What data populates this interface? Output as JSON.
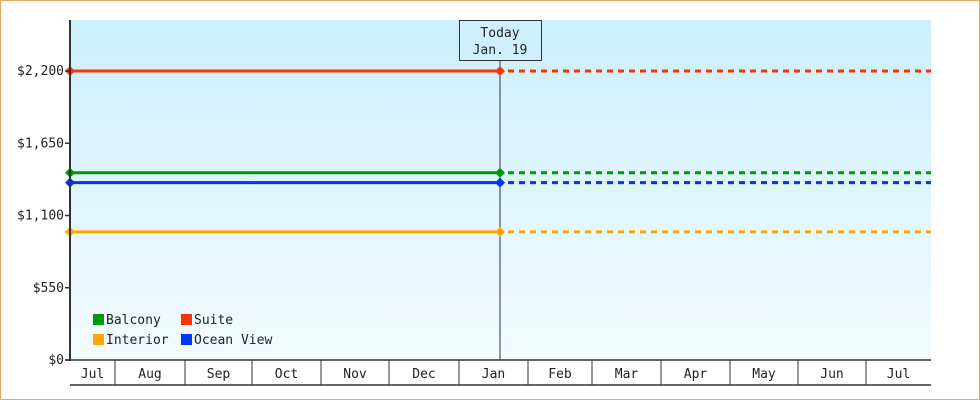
{
  "chart_data": {
    "type": "line",
    "title": "",
    "xlabel": "",
    "ylabel": "",
    "ylim": [
      0,
      2200
    ],
    "y_ticks": [
      "$0",
      "$550",
      "$1,100",
      "$1,650",
      "$2,200"
    ],
    "y_tick_values": [
      0,
      550,
      1100,
      1650,
      2200
    ],
    "categories": [
      "Jul",
      "Aug",
      "Sep",
      "Oct",
      "Nov",
      "Dec",
      "Jan",
      "Feb",
      "Mar",
      "Apr",
      "May",
      "Jun",
      "Jul"
    ],
    "today_marker": {
      "line1": "Today",
      "line2": "Jan. 19"
    },
    "legend_placement": "bottom-left",
    "series": [
      {
        "name": "Balcony",
        "color": "#009900",
        "value": 1425,
        "from": "Jul",
        "to": "Jan. 19",
        "projection": "dotted to Jul"
      },
      {
        "name": "Suite",
        "color": "#ff3300",
        "value": 2200,
        "from": "Jul",
        "to": "Jan. 19",
        "projection": "dotted to Jul"
      },
      {
        "name": "Interior",
        "color": "#ffa500",
        "value": 975,
        "from": "Jul",
        "to": "Jan. 19",
        "projection": "dotted to Jul"
      },
      {
        "name": "Ocean View",
        "color": "#0033ff",
        "value": 1350,
        "from": "Jul",
        "to": "Jan. 19",
        "projection": "dotted to Jul"
      }
    ],
    "background_gradient": [
      "#cbeffc",
      "#f3fbff"
    ]
  }
}
